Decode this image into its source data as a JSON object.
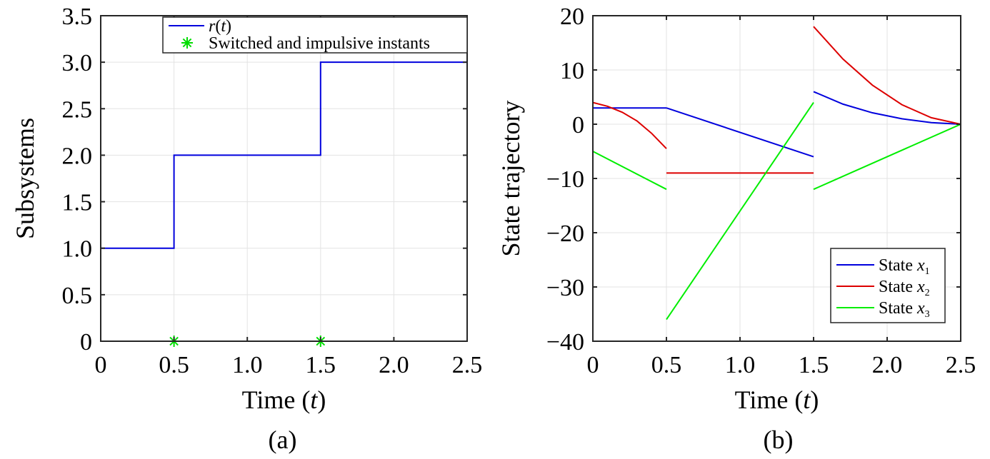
{
  "chart_data": [
    {
      "type": "line",
      "caption": "(a)",
      "xlabel": "Time",
      "xlabel_var": "t",
      "ylabel": "Subsystems",
      "xlim": [
        0,
        2.5
      ],
      "ylim": [
        0,
        3.5
      ],
      "x_ticks": [
        "0",
        "0.5",
        "1.0",
        "1.5",
        "2.0",
        "2.5"
      ],
      "y_ticks": [
        "0",
        "0.5",
        "1.0",
        "1.5",
        "2.0",
        "2.5",
        "3.0",
        "3.5"
      ],
      "grid": true,
      "legend_position": "top-right",
      "series": [
        {
          "name": "r",
          "name_var": "t",
          "kind": "step",
          "color": "#0000dd",
          "points": [
            [
              0,
              1
            ],
            [
              0.5,
              1
            ],
            [
              0.5,
              2
            ],
            [
              1.5,
              2
            ],
            [
              1.5,
              3
            ],
            [
              2.5,
              3
            ]
          ]
        },
        {
          "name": "Switched and impulsive instants",
          "kind": "marker",
          "marker": "asterisk",
          "color": "#00dd00",
          "points": [
            [
              0.5,
              0
            ],
            [
              1.5,
              0
            ]
          ]
        }
      ]
    },
    {
      "type": "line",
      "caption": "(b)",
      "xlabel": "Time",
      "xlabel_var": "t",
      "ylabel": "State trajectory",
      "xlim": [
        0,
        2.5
      ],
      "ylim": [
        -40,
        20
      ],
      "x_ticks": [
        "0",
        "0.5",
        "1.0",
        "1.5",
        "2.0",
        "2.5"
      ],
      "y_ticks": [
        "−40",
        "−30",
        "−20",
        "−10",
        "0",
        "10",
        "20"
      ],
      "grid": true,
      "legend_position": "bottom-right",
      "series": [
        {
          "name": "State",
          "name_var": "x",
          "name_sub": "1",
          "color": "#0000dd",
          "segments": [
            [
              [
                0,
                3
              ],
              [
                0.5,
                3
              ]
            ],
            [
              [
                0.5,
                3
              ],
              [
                1.5,
                -6
              ]
            ],
            [
              [
                1.5,
                6
              ],
              [
                1.7,
                3.7
              ],
              [
                1.9,
                2.1
              ],
              [
                2.1,
                1.0
              ],
              [
                2.3,
                0.3
              ],
              [
                2.5,
                0
              ]
            ]
          ]
        },
        {
          "name": "State",
          "name_var": "x",
          "name_sub": "2",
          "color": "#dd0000",
          "segments": [
            [
              [
                0,
                4
              ],
              [
                0.1,
                3.3
              ],
              [
                0.2,
                2.2
              ],
              [
                0.3,
                0.6
              ],
              [
                0.4,
                -1.7
              ],
              [
                0.5,
                -4.5
              ]
            ],
            [
              [
                0.5,
                -9
              ],
              [
                1.5,
                -9
              ]
            ],
            [
              [
                1.5,
                18
              ],
              [
                1.7,
                12
              ],
              [
                1.9,
                7.2
              ],
              [
                2.1,
                3.6
              ],
              [
                2.3,
                1.2
              ],
              [
                2.5,
                0
              ]
            ]
          ]
        },
        {
          "name": "State",
          "name_var": "x",
          "name_sub": "3",
          "color": "#00ee00",
          "segments": [
            [
              [
                0,
                -5
              ],
              [
                0.5,
                -12
              ]
            ],
            [
              [
                0.5,
                -36
              ],
              [
                1.5,
                4
              ]
            ],
            [
              [
                1.5,
                -12
              ],
              [
                2.5,
                0
              ]
            ]
          ]
        }
      ]
    }
  ]
}
